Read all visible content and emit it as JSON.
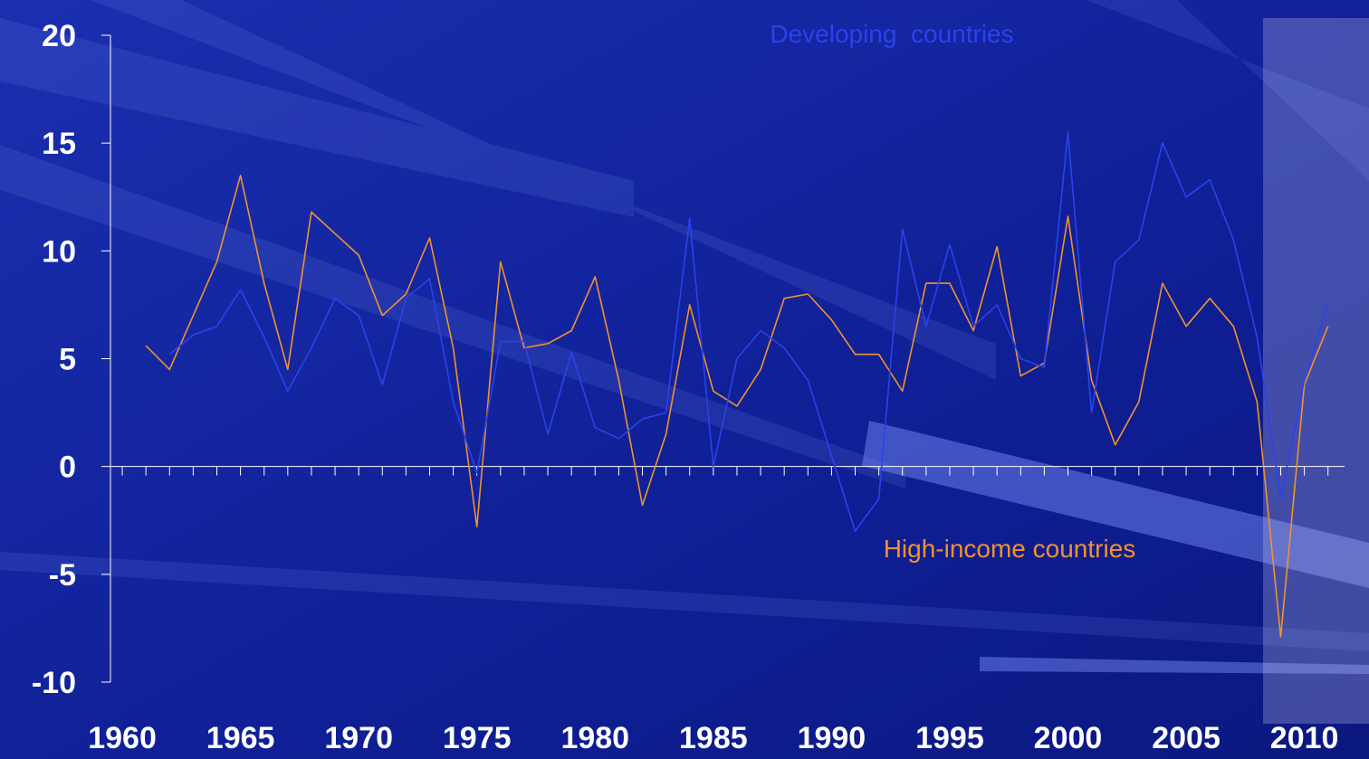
{
  "chart_data": {
    "type": "line",
    "x": [
      1961,
      1962,
      1963,
      1964,
      1965,
      1966,
      1967,
      1968,
      1969,
      1970,
      1971,
      1972,
      1973,
      1974,
      1975,
      1976,
      1977,
      1978,
      1979,
      1980,
      1981,
      1982,
      1983,
      1984,
      1985,
      1986,
      1987,
      1988,
      1989,
      1990,
      1991,
      1992,
      1993,
      1994,
      1995,
      1996,
      1997,
      1998,
      1999,
      2000,
      2001,
      2002,
      2003,
      2004,
      2005,
      2006,
      2007,
      2008,
      2009,
      2010,
      2011
    ],
    "series": [
      {
        "name": "High-income countries",
        "color": "#f0922e",
        "values": [
          5.6,
          4.5,
          7.0,
          9.5,
          13.5,
          8.5,
          4.5,
          11.8,
          10.8,
          9.8,
          7.0,
          8.0,
          10.6,
          5.5,
          -2.8,
          9.5,
          5.5,
          5.7,
          6.3,
          8.8,
          4.0,
          -1.8,
          1.5,
          7.5,
          3.5,
          2.8,
          4.5,
          7.8,
          8.0,
          6.8,
          5.2,
          5.2,
          3.5,
          8.5,
          8.5,
          6.3,
          10.2,
          4.2,
          4.8,
          11.6,
          4.0,
          1.0,
          3.0,
          8.5,
          6.5,
          7.8,
          6.5,
          3.0,
          -7.9,
          3.8,
          6.5
        ]
      },
      {
        "name": "Developing  countries",
        "color": "#2a42ee",
        "values": [
          null,
          5.2,
          6.1,
          6.5,
          8.2,
          6.0,
          3.5,
          5.5,
          7.8,
          7.0,
          3.8,
          7.8,
          8.7,
          3.0,
          -0.3,
          5.8,
          5.8,
          1.5,
          5.3,
          1.8,
          1.3,
          2.2,
          2.5,
          11.5,
          0.0,
          5.0,
          6.3,
          5.5,
          4.0,
          0.5,
          -3.0,
          -1.5,
          11.0,
          6.5,
          10.3,
          6.5,
          7.5,
          5.0,
          4.6,
          15.5,
          2.5,
          9.5,
          10.5,
          15.0,
          12.5,
          13.3,
          10.5,
          6.0,
          -1.5,
          4.0,
          7.5
        ]
      }
    ],
    "xlim": [
      1959.5,
      2011.7
    ],
    "xticks": [
      1960,
      1965,
      1970,
      1975,
      1980,
      1985,
      1990,
      1995,
      2000,
      2005,
      2010
    ],
    "xminor_ticks": [
      1960,
      1961,
      1962,
      1963,
      1964,
      1965,
      1966,
      1967,
      1968,
      1969,
      1970,
      1971,
      1972,
      1973,
      1974,
      1975,
      1976,
      1977,
      1978,
      1979,
      1980,
      1981,
      1982,
      1983,
      1984,
      1985,
      1986,
      1987,
      1988,
      1989,
      1990,
      1991,
      1992,
      1993,
      1994,
      1995,
      1996,
      1997,
      1998,
      1999,
      2000,
      2001,
      2002,
      2003,
      2004,
      2005,
      2006,
      2007,
      2008,
      2009,
      2010,
      2011
    ],
    "ylim": [
      -10,
      20
    ],
    "yticks": [
      -10,
      -5,
      0,
      5,
      10,
      15,
      20
    ]
  }
}
